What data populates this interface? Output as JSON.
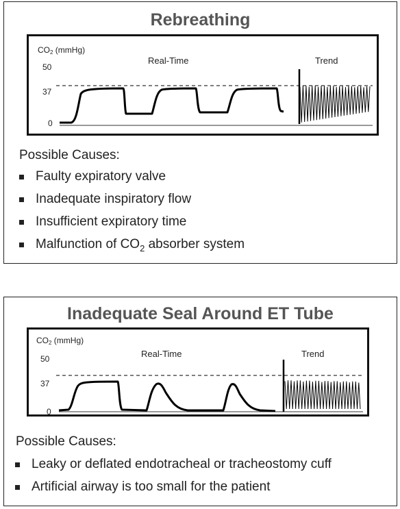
{
  "panels": [
    {
      "title": "Rebreathing",
      "y_label_prefix": "CO",
      "y_label_sub": "2",
      "y_label_suffix": " (mmHg)",
      "realtime_label": "Real-Time",
      "trend_label": "Trend",
      "y_ticks": [
        "50",
        "37",
        "0"
      ],
      "reference_value": 37,
      "waveform": "rebreathing",
      "causes_heading": "Possible Causes:",
      "causes": [
        {
          "text": "Faulty expiratory valve"
        },
        {
          "text": "Inadequate inspiratory flow"
        },
        {
          "text": "Insufficient expiratory time"
        },
        {
          "text": "Malfunction of CO",
          "sub": "2",
          "after": " absorber system"
        }
      ]
    },
    {
      "title": "Inadequate Seal Around ET Tube",
      "y_label_prefix": "CO",
      "y_label_sub": "2",
      "y_label_suffix": " (mmHg)",
      "realtime_label": "Real-Time",
      "trend_label": "Trend",
      "y_ticks": [
        "50",
        "37",
        "0"
      ],
      "reference_value": 37,
      "waveform": "leak",
      "causes_heading": "Possible Causes:",
      "causes": [
        {
          "text": "Leaky or deflated endotracheal or tracheostomy cuff"
        },
        {
          "text": "Artificial airway is too small for the patient"
        }
      ]
    }
  ]
}
